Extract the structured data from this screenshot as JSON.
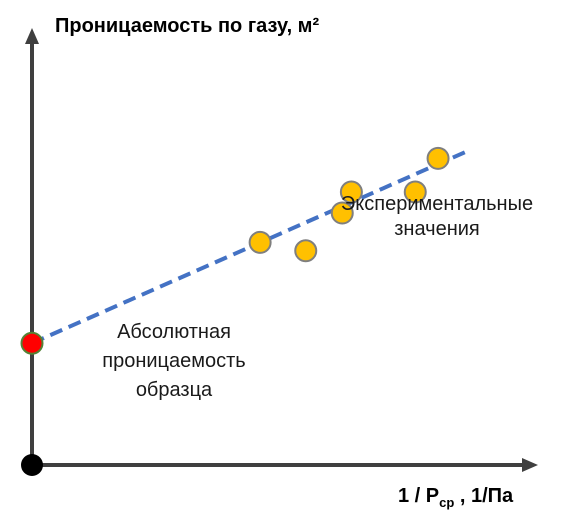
{
  "chart_data": {
    "type": "scatter",
    "title": "",
    "ylabel": "Проницаемость по газу, м²",
    "xlabel": "1 / Pср , 1/Па",
    "xlabel_parts": {
      "prefix": "1 / P",
      "subscript": "ср",
      "suffix": " , 1/Па"
    },
    "axes_ticks_shown": false,
    "grid": false,
    "legend": "none",
    "origin": {
      "x": 0,
      "y": 0,
      "color": "#000000"
    },
    "series": [
      {
        "kind": "points",
        "name": "Экспериментальные значения",
        "color": "#FFC000",
        "stroke_color": "#7F7F7F",
        "points": [
          {
            "x": 2.5,
            "y": 2.65
          },
          {
            "x": 3.0,
            "y": 2.55
          },
          {
            "x": 3.4,
            "y": 3.0
          },
          {
            "x": 3.5,
            "y": 3.25
          },
          {
            "x": 4.2,
            "y": 3.25
          },
          {
            "x": 4.45,
            "y": 3.65
          }
        ]
      },
      {
        "kind": "trendline",
        "name": "",
        "style": "dashed",
        "color": "#4472C4",
        "from": {
          "x": 0,
          "y": 1.45
        },
        "to": {
          "x": 4.8,
          "y": 3.75
        }
      },
      {
        "kind": "intercept",
        "name": "Абсолютная проницаемость образца",
        "color": "#FF0000",
        "stroke_color": "#548235",
        "point": {
          "x": 0,
          "y": 1.45
        }
      }
    ],
    "annotations": [
      {
        "key": "experimental",
        "lines": [
          "Экспериментальные",
          "значения"
        ]
      },
      {
        "key": "absolute",
        "lines": [
          "Абсолютная",
          "проницаемость",
          "образца"
        ]
      }
    ]
  }
}
